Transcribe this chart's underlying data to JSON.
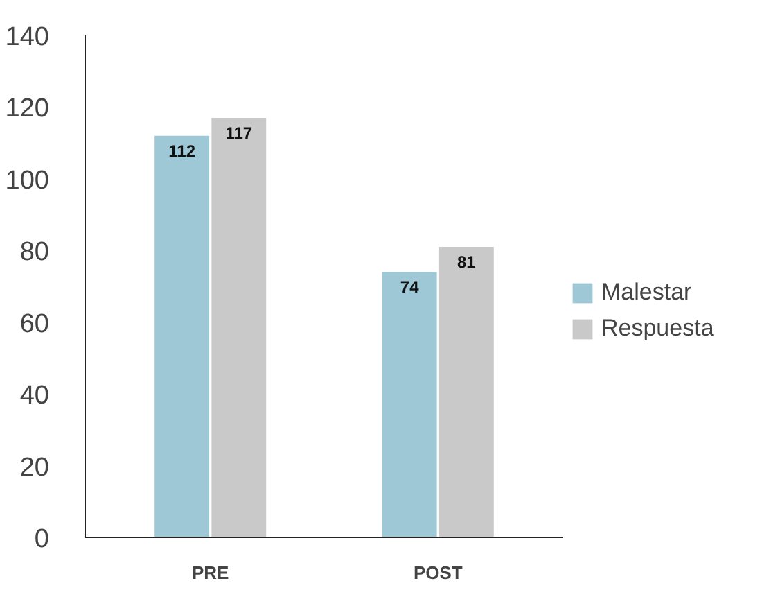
{
  "chart_data": {
    "type": "bar",
    "categories": [
      "PRE",
      "POST"
    ],
    "series": [
      {
        "name": "Malestar",
        "color": "#9fc8d6",
        "values": [
          112,
          74
        ]
      },
      {
        "name": "Respuesta",
        "color": "#c9c9c9",
        "values": [
          117,
          81
        ]
      }
    ],
    "ylim": [
      0,
      140
    ],
    "yticks": [
      0,
      20,
      40,
      60,
      80,
      100,
      120,
      140
    ],
    "data_labels": true,
    "grid": false,
    "legend": "right"
  }
}
